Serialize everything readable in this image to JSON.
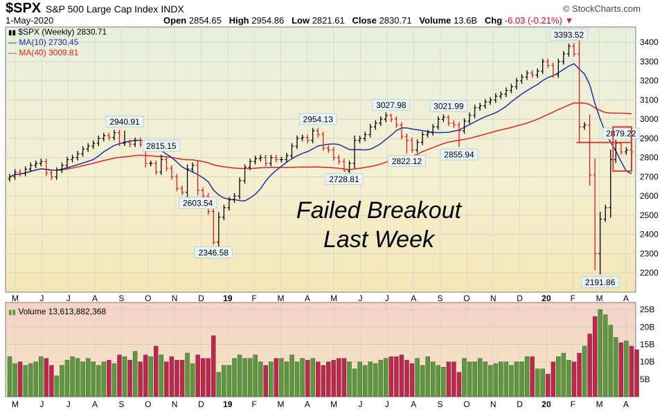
{
  "header": {
    "symbol": "$SPX",
    "description": "S&P 500 Large Cap Index",
    "exchange": "INDX",
    "source": "© StockCharts.com",
    "date": "1-May-2020",
    "open_label": "Open",
    "open": "2854.65",
    "high_label": "High",
    "high": "2954.86",
    "low_label": "Low",
    "low": "2821.61",
    "close_label": "Close",
    "close": "2830.71",
    "volume_label": "Volume",
    "volume": "13.6B",
    "chg_label": "Chg",
    "chg": "-6.03 (-0.21%)"
  },
  "legend": {
    "price": "$SPX (Weekly) 2830.71",
    "ma10": "MA(10) 2730.45",
    "ma40": "MA(40) 3009.81",
    "volume": "Volume 13,613,882,368"
  },
  "colors": {
    "up": "#000000",
    "down": "#e0181b",
    "ma10": "#1c2fa8",
    "ma40": "#e2211c",
    "vol_up": "#5b9a3c",
    "vol_down": "#c1244d",
    "annotation_box": "#e03a3a"
  },
  "annotation": {
    "line1": "Failed Breakout",
    "line2": "Last Week"
  },
  "chart_data": [
    {
      "type": "ohlc",
      "interval": "weekly",
      "series": [
        {
          "name": "$SPX (Weekly)",
          "close_last": 2830.71
        },
        {
          "name": "MA(10)",
          "last": 2730.45
        },
        {
          "name": "MA(40)",
          "last": 3009.81
        }
      ],
      "ylim": [
        2100,
        3480
      ],
      "yticks": [
        2200,
        2300,
        2400,
        2500,
        2600,
        2700,
        2800,
        2900,
        3000,
        3100,
        3200,
        3300,
        3400
      ],
      "xticks": [
        "M",
        "J",
        "J",
        "A",
        "S",
        "O",
        "N",
        "D",
        "19",
        "F",
        "M",
        "A",
        "M",
        "J",
        "J",
        "A",
        "S",
        "O",
        "N",
        "D",
        "20",
        "F",
        "M",
        "A"
      ],
      "closes": [
        2700,
        2725,
        2718,
        2740,
        2760,
        2770,
        2780,
        2720,
        2700,
        2735,
        2760,
        2790,
        2800,
        2820,
        2845,
        2860,
        2875,
        2900,
        2915,
        2905,
        2930,
        2875,
        2880,
        2870,
        2890,
        2870,
        2770,
        2770,
        2725,
        2790,
        2745,
        2700,
        2640,
        2620,
        2740,
        2760,
        2630,
        2600,
        2520,
        2360,
        2490,
        2540,
        2580,
        2600,
        2680,
        2750,
        2780,
        2795,
        2800,
        2770,
        2800,
        2790,
        2790,
        2810,
        2860,
        2900,
        2905,
        2890,
        2940,
        2920,
        2850,
        2840,
        2800,
        2780,
        2730,
        2770,
        2890,
        2900,
        2920,
        2960,
        2980,
        3000,
        3020,
        3000,
        2970,
        2910,
        2890,
        2840,
        2880,
        2920,
        2930,
        2960,
        3000,
        3010,
        2980,
        2970,
        2940,
        2990,
        3020,
        3060,
        3070,
        3090,
        3100,
        3120,
        3130,
        3150,
        3170,
        3200,
        3220,
        3240,
        3230,
        3250,
        3300,
        3280,
        3230,
        3300,
        3340,
        3380,
        3340,
        2960,
        2970,
        2710,
        2300,
        2480,
        2540,
        2790,
        2875,
        2830,
        2840,
        2830
      ],
      "annotations": [
        {
          "label": "2940.91",
          "index": 22,
          "value": 2940.91
        },
        {
          "label": "2815.15",
          "index": 29,
          "value": 2815.15
        },
        {
          "label": "2603.54",
          "index": 36,
          "value": 2603.54
        },
        {
          "label": "2346.58",
          "index": 39,
          "value": 2346.58
        },
        {
          "label": "2954.13",
          "index": 59,
          "value": 2954.13
        },
        {
          "label": "2728.81",
          "index": 64,
          "value": 2728.81
        },
        {
          "label": "3027.98",
          "index": 73,
          "value": 3027.98
        },
        {
          "label": "2822.12",
          "index": 76,
          "value": 2822.12
        },
        {
          "label": "3021.99",
          "index": 84,
          "value": 3021.99
        },
        {
          "label": "2855.94",
          "index": 86,
          "value": 2855.94
        },
        {
          "label": "3393.52",
          "index": 107,
          "value": 3393.52
        },
        {
          "label": "2879.22",
          "index": 117,
          "value": 2879.22
        },
        {
          "label": "2191.86",
          "index": 113,
          "value": 2191.86
        }
      ]
    },
    {
      "type": "bar",
      "series": [
        {
          "name": "Volume",
          "last": 13613882368
        }
      ],
      "ylim": [
        0,
        27
      ],
      "yticks": [
        "5B",
        "10B",
        "15B",
        "20B",
        "25B"
      ],
      "values": [
        11.5,
        9.5,
        10,
        9,
        9.5,
        10,
        11.5,
        11,
        9,
        6,
        9,
        10.5,
        11.5,
        11,
        10,
        11,
        10,
        9,
        10,
        10.5,
        9.5,
        12,
        11.5,
        10.5,
        13,
        10,
        12,
        11.5,
        14.5,
        12,
        10,
        11.5,
        10.5,
        10.5,
        12.5,
        9.5,
        12,
        11,
        11,
        17.5,
        7,
        9,
        9,
        11,
        12,
        11,
        11,
        12,
        10,
        9,
        10,
        11,
        11,
        10,
        12,
        10,
        11,
        10.5,
        11,
        10,
        9,
        10,
        10.5,
        11,
        11,
        10,
        8,
        10,
        9,
        10,
        9.5,
        10.5,
        11,
        11.5,
        11.5,
        12,
        10.5,
        9.5,
        11,
        9,
        11.5,
        10,
        9,
        8.5,
        10,
        10,
        7,
        11,
        10,
        10,
        11,
        10,
        9,
        9.5,
        10,
        10,
        9,
        10,
        10,
        11.5,
        11.5,
        8,
        8,
        6.5,
        10,
        11.5,
        12.5,
        10.5,
        10,
        12.5,
        14.5,
        18,
        23,
        25,
        23.5,
        20.5,
        17,
        15.5,
        16,
        14.5,
        13.5
      ]
    }
  ]
}
